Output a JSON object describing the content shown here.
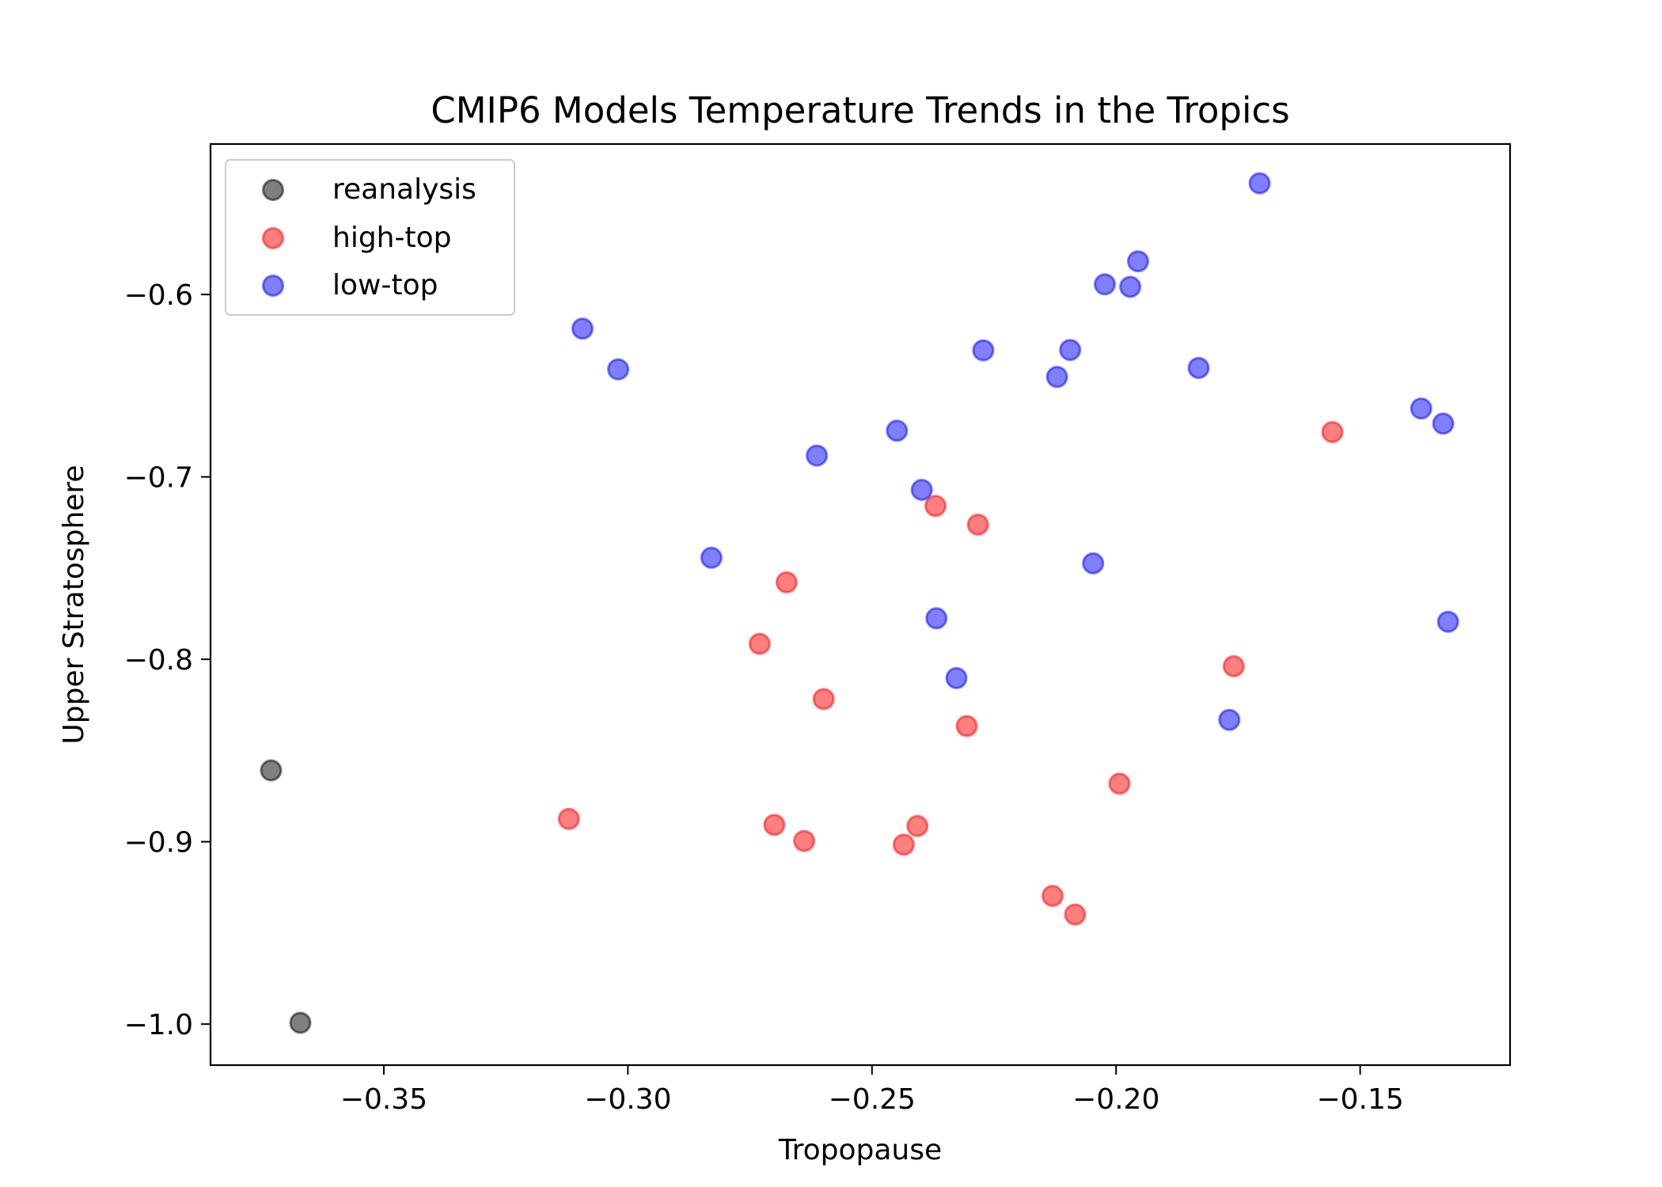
{
  "chart_data": {
    "type": "scatter",
    "title": "CMIP6 Models Temperature Trends in the Tropics",
    "xlabel": "Tropopause",
    "ylabel": "Upper Stratosphere",
    "xlim": [
      -0.3855,
      -0.1193
    ],
    "ylim": [
      -1.0225,
      -0.5175
    ],
    "xticks": [
      -0.35,
      -0.3,
      -0.25,
      -0.2,
      -0.15
    ],
    "xtick_labels": [
      "−0.35",
      "−0.30",
      "−0.25",
      "−0.20",
      "−0.15"
    ],
    "yticks": [
      -1.0,
      -0.9,
      -0.8,
      -0.7,
      -0.6
    ],
    "ytick_labels": [
      "−1.0",
      "−0.9",
      "−0.8",
      "−0.7",
      "−0.6"
    ],
    "grid": false,
    "legend_position": "top-left",
    "series": [
      {
        "name": "reanalysis",
        "color": "#000000",
        "points": [
          {
            "x": -0.3731,
            "y": -0.8609
          },
          {
            "x": -0.3671,
            "y": -0.9993
          }
        ]
      },
      {
        "name": "high-top",
        "color": "#ff0000",
        "points": [
          {
            "x": -0.3121,
            "y": -0.8875
          },
          {
            "x": -0.273,
            "y": -0.7915
          },
          {
            "x": -0.27,
            "y": -0.8908
          },
          {
            "x": -0.2675,
            "y": -0.7578
          },
          {
            "x": -0.2639,
            "y": -0.8996
          },
          {
            "x": -0.2599,
            "y": -0.8218
          },
          {
            "x": -0.2435,
            "y": -0.9016
          },
          {
            "x": -0.2407,
            "y": -0.8914
          },
          {
            "x": -0.237,
            "y": -0.7159
          },
          {
            "x": -0.2306,
            "y": -0.8366
          },
          {
            "x": -0.2283,
            "y": -0.7262
          },
          {
            "x": -0.213,
            "y": -0.9297
          },
          {
            "x": -0.2084,
            "y": -0.9399
          },
          {
            "x": -0.1993,
            "y": -0.8682
          },
          {
            "x": -0.1759,
            "y": -0.8038
          },
          {
            "x": -0.1557,
            "y": -0.6754
          }
        ]
      },
      {
        "name": "low-top",
        "color": "#0000ff",
        "points": [
          {
            "x": -0.3093,
            "y": -0.6187
          },
          {
            "x": -0.302,
            "y": -0.641
          },
          {
            "x": -0.2829,
            "y": -0.7443
          },
          {
            "x": -0.2613,
            "y": -0.6883
          },
          {
            "x": -0.2449,
            "y": -0.6747
          },
          {
            "x": -0.2398,
            "y": -0.7071
          },
          {
            "x": -0.2368,
            "y": -0.7775
          },
          {
            "x": -0.2327,
            "y": -0.8103
          },
          {
            "x": -0.2272,
            "y": -0.6306
          },
          {
            "x": -0.2121,
            "y": -0.6452
          },
          {
            "x": -0.2094,
            "y": -0.6304
          },
          {
            "x": -0.2047,
            "y": -0.7474
          },
          {
            "x": -0.2023,
            "y": -0.5944
          },
          {
            "x": -0.1971,
            "y": -0.5958
          },
          {
            "x": -0.1955,
            "y": -0.5818
          },
          {
            "x": -0.1831,
            "y": -0.6403
          },
          {
            "x": -0.1768,
            "y": -0.8332
          },
          {
            "x": -0.1706,
            "y": -0.539
          },
          {
            "x": -0.1375,
            "y": -0.6625
          },
          {
            "x": -0.133,
            "y": -0.6708
          },
          {
            "x": -0.132,
            "y": -0.7794
          }
        ]
      }
    ]
  }
}
